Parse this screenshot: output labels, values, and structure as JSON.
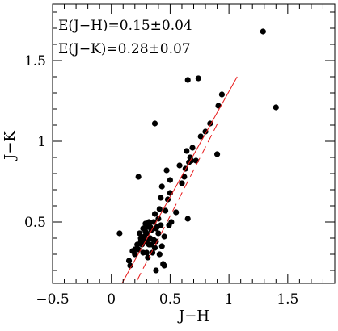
{
  "chart_data": {
    "type": "scatter",
    "xlabel": "J−H",
    "ylabel": "J−K",
    "xlim": [
      -0.5,
      1.9
    ],
    "ylim": [
      0.12,
      1.85
    ],
    "xticks": [
      -0.5,
      0,
      0.5,
      1,
      1.5
    ],
    "xtick_labels": [
      "−0.5",
      "0",
      "0.5",
      "1",
      "1.5"
    ],
    "yticks": [
      0.5,
      1,
      1.5
    ],
    "ytick_labels": [
      "0.5",
      "1",
      "1.5"
    ],
    "grid": false,
    "annotations": [
      "E(J−H)=0.15±0.04",
      "E(J−K)=0.28±0.07"
    ],
    "colors": {
      "points": "#000000",
      "lines": "#e8191a",
      "frame": "#000000"
    },
    "points": [
      [
        0.07,
        0.43
      ],
      [
        0.15,
        0.26
      ],
      [
        0.16,
        0.23
      ],
      [
        0.18,
        0.32
      ],
      [
        0.2,
        0.3
      ],
      [
        0.2,
        0.33
      ],
      [
        0.22,
        0.36
      ],
      [
        0.23,
        0.33
      ],
      [
        0.24,
        0.43
      ],
      [
        0.25,
        0.38
      ],
      [
        0.25,
        0.4
      ],
      [
        0.26,
        0.36
      ],
      [
        0.27,
        0.31
      ],
      [
        0.27,
        0.46
      ],
      [
        0.28,
        0.38
      ],
      [
        0.28,
        0.41
      ],
      [
        0.29,
        0.44
      ],
      [
        0.29,
        0.49
      ],
      [
        0.3,
        0.31
      ],
      [
        0.3,
        0.38
      ],
      [
        0.3,
        0.43
      ],
      [
        0.31,
        0.47
      ],
      [
        0.31,
        0.28
      ],
      [
        0.32,
        0.5
      ],
      [
        0.32,
        0.36
      ],
      [
        0.33,
        0.4
      ],
      [
        0.33,
        0.47
      ],
      [
        0.34,
        0.45
      ],
      [
        0.34,
        0.36
      ],
      [
        0.35,
        0.31
      ],
      [
        0.36,
        0.5
      ],
      [
        0.36,
        0.39
      ],
      [
        0.37,
        0.55
      ],
      [
        0.37,
        0.34
      ],
      [
        0.38,
        0.38
      ],
      [
        0.38,
        0.46
      ],
      [
        0.38,
        0.2
      ],
      [
        0.39,
        0.47
      ],
      [
        0.4,
        0.52
      ],
      [
        0.4,
        0.43
      ],
      [
        0.41,
        0.3
      ],
      [
        0.41,
        0.58
      ],
      [
        0.42,
        0.48
      ],
      [
        0.42,
        0.65
      ],
      [
        0.43,
        0.35
      ],
      [
        0.43,
        0.72
      ],
      [
        0.44,
        0.24
      ],
      [
        0.45,
        0.23
      ],
      [
        0.45,
        0.41
      ],
      [
        0.46,
        0.57
      ],
      [
        0.47,
        0.82
      ],
      [
        0.48,
        0.64
      ],
      [
        0.49,
        0.48
      ],
      [
        0.5,
        0.68
      ],
      [
        0.5,
        0.76
      ],
      [
        0.51,
        0.5
      ],
      [
        0.55,
        0.56
      ],
      [
        0.58,
        0.85
      ],
      [
        0.6,
        0.74
      ],
      [
        0.62,
        0.78
      ],
      [
        0.63,
        0.83
      ],
      [
        0.64,
        0.94
      ],
      [
        0.65,
        0.52
      ],
      [
        0.66,
        0.87
      ],
      [
        0.67,
        0.9
      ],
      [
        0.68,
        0.88
      ],
      [
        0.69,
        0.96
      ],
      [
        0.72,
        0.88
      ],
      [
        0.76,
        1.03
      ],
      [
        0.8,
        1.06
      ],
      [
        0.84,
        1.11
      ],
      [
        0.9,
        0.92
      ],
      [
        0.91,
        1.22
      ],
      [
        0.94,
        1.29
      ],
      [
        0.23,
        0.78
      ],
      [
        0.37,
        1.11
      ],
      [
        0.65,
        1.38
      ],
      [
        0.74,
        1.39
      ],
      [
        1.29,
        1.68
      ],
      [
        1.4,
        1.21
      ]
    ],
    "solid_line": {
      "x": [
        0.09,
        1.07
      ],
      "y": [
        0.12,
        1.4
      ]
    },
    "dashed_line": {
      "x": [
        0.22,
        0.91
      ],
      "y": [
        0.14,
        1.12
      ]
    }
  }
}
